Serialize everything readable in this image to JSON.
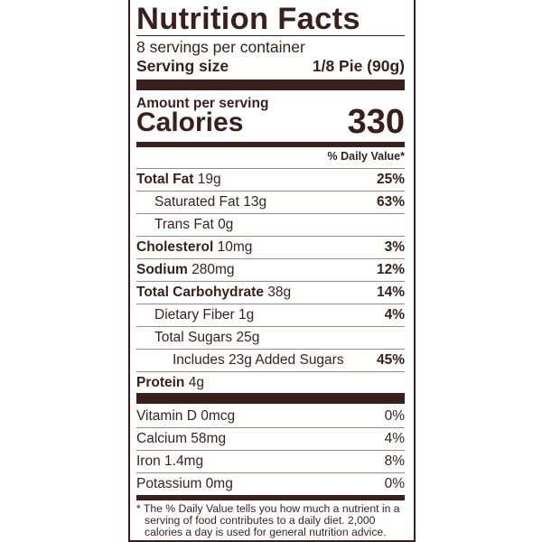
{
  "title": "Nutrition Facts",
  "servings_per_container": "8 servings per container",
  "serving_size_label": "Serving size",
  "serving_size_value": "1/8 Pie (90g)",
  "amount_per_serving": "Amount per serving",
  "calories_label": "Calories",
  "calories_value": "330",
  "daily_value_header": "% Daily Value*",
  "nutrients": [
    {
      "name": "Total Fat",
      "amount": "19g",
      "dv": "25%",
      "bold": true,
      "indent": 0
    },
    {
      "name": "Saturated Fat",
      "amount": "13g",
      "dv": "63%",
      "bold": false,
      "indent": 1
    },
    {
      "name": "Trans Fat",
      "amount": "0g",
      "dv": "",
      "bold": false,
      "indent": 1
    },
    {
      "name": "Cholesterol",
      "amount": "10mg",
      "dv": "3%",
      "bold": true,
      "indent": 0
    },
    {
      "name": "Sodium",
      "amount": "280mg",
      "dv": "12%",
      "bold": true,
      "indent": 0
    },
    {
      "name": "Total Carbohydrate",
      "amount": "38g",
      "dv": "14%",
      "bold": true,
      "indent": 0
    },
    {
      "name": "Dietary Fiber",
      "amount": "1g",
      "dv": "4%",
      "bold": false,
      "indent": 1
    },
    {
      "name": "Total Sugars",
      "amount": "25g",
      "dv": "",
      "bold": false,
      "indent": 1
    },
    {
      "name": "Includes 23g Added Sugars",
      "amount": "",
      "dv": "45%",
      "bold": false,
      "indent": 2
    },
    {
      "name": "Protein",
      "amount": "4g",
      "dv": "",
      "bold": true,
      "indent": 0
    }
  ],
  "vitamins": [
    {
      "name": "Vitamin D 0mcg",
      "dv": "0%"
    },
    {
      "name": "Calcium 58mg",
      "dv": "4%"
    },
    {
      "name": "Iron 1.4mg",
      "dv": "8%"
    },
    {
      "name": "Potassium 0mg",
      "dv": "0%"
    }
  ],
  "footnote": [
    "* The % Daily Value tells you how much a nutrient in a",
    "serving of food contributes to a daily diet. 2,000",
    "calories a day is used for general nutrition advice."
  ],
  "colors": {
    "ink": "#3a1f1c"
  }
}
